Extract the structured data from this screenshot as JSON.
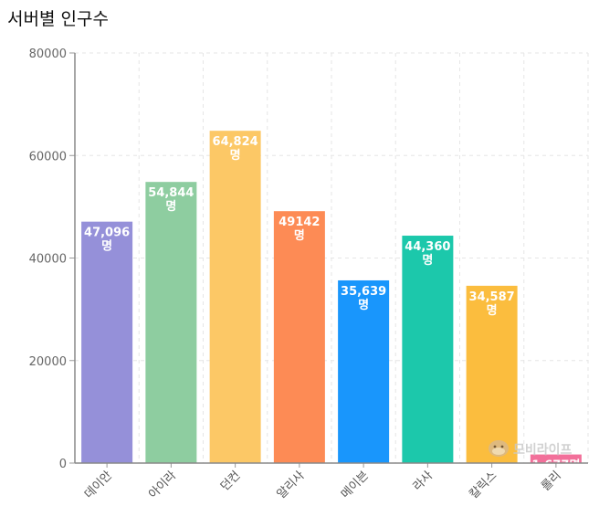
{
  "chart_data": {
    "type": "bar",
    "title": "서버별 인구수",
    "categories": [
      "데이안",
      "아이라",
      "던컨",
      "알리사",
      "메이븐",
      "라사",
      "칼릭스",
      "롤리"
    ],
    "values": [
      47096,
      54844,
      64824,
      49142,
      35639,
      44360,
      34587,
      1677
    ],
    "data_labels": [
      [
        "47,096",
        "명"
      ],
      [
        "54,844",
        "명"
      ],
      [
        "64,824",
        "명"
      ],
      [
        "49142",
        "명"
      ],
      [
        "35,639",
        "명"
      ],
      [
        "44,360",
        "명"
      ],
      [
        "34,587",
        "명"
      ],
      [
        "1,677명",
        ""
      ]
    ],
    "colors": [
      "#9590d9",
      "#8ecda0",
      "#fcc866",
      "#fd8b55",
      "#1996fc",
      "#1cc8ab",
      "#fbbd3e",
      "#f2709a"
    ],
    "yticks": [
      0,
      20000,
      40000,
      60000,
      80000
    ],
    "ylim": [
      0,
      80000
    ],
    "grid": true,
    "xlabel": "",
    "ylabel": ""
  },
  "watermark": {
    "text": "모비라이프",
    "icon": "cat-face-icon"
  }
}
